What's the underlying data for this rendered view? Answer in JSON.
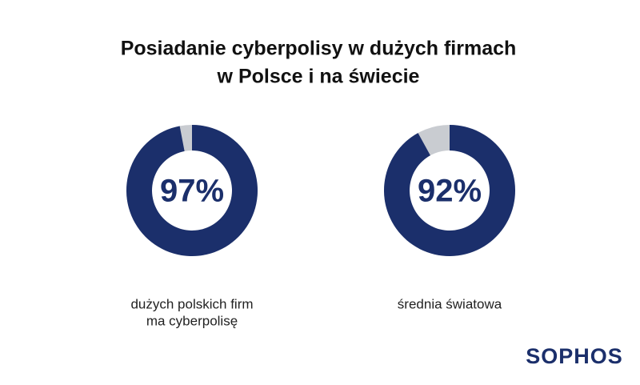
{
  "title": [
    "Posiadanie cyberpolisy w dużych firmach",
    "w Polsce i na świecie"
  ],
  "chart_data": [
    {
      "type": "donut",
      "values": [
        97
      ],
      "value_labels": [
        "97%"
      ],
      "color": "#1b2f6b",
      "track_color": "#c9ccd1",
      "caption": [
        "dużych polskich firm",
        "ma cyberpolisę"
      ]
    },
    {
      "type": "donut",
      "values": [
        92
      ],
      "value_labels": [
        "92%"
      ],
      "color": "#1b2f6b",
      "track_color": "#c9ccd1",
      "caption": [
        "średnia światowa"
      ]
    }
  ],
  "logo": "SOPHOS"
}
